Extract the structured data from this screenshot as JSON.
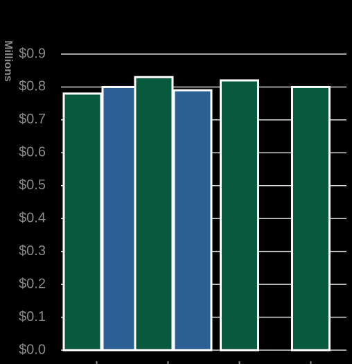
{
  "chart_data": {
    "type": "bar",
    "title": "",
    "xlabel": "",
    "ylabel": "Millions",
    "ylim": [
      0,
      0.9
    ],
    "y_ticks": [
      0,
      0.1,
      0.2,
      0.3,
      0.4,
      0.5,
      0.6,
      0.7,
      0.8,
      0.9
    ],
    "y_tick_labels": [
      "$0.0",
      "$0.1",
      "$0.2",
      "$0.3",
      "$0.4",
      "$0.5",
      "$0.6",
      "$0.7",
      "$0.8",
      "$0.9"
    ],
    "grid": true,
    "legend": "none",
    "groups": [
      {
        "bars": [
          {
            "value": 0.78,
            "color": "#075a3d"
          },
          {
            "value": 0.8,
            "color": "#2c5f94"
          }
        ]
      },
      {
        "bars": [
          {
            "value": 0.83,
            "color": "#075a3d"
          },
          {
            "value": 0.79,
            "color": "#2c5f94"
          }
        ]
      },
      {
        "bars": [
          {
            "value": 0.82,
            "color": "#075a3d"
          }
        ]
      },
      {
        "bars": [
          {
            "value": 0.8,
            "color": "#075a3d"
          }
        ]
      }
    ],
    "colors": {
      "background": "#000000",
      "grid": "#d9d9d9",
      "bar_outline": "#ffffff",
      "text": "#8a8a8a"
    }
  }
}
